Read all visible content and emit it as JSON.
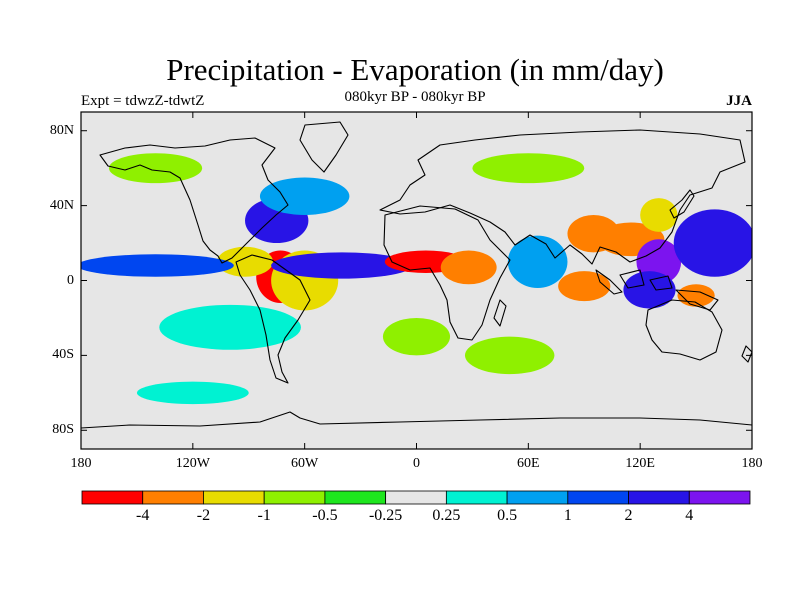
{
  "title": "Precipitation - Evaporation (in mm/day)",
  "subtitle": "080kyr BP - 080kyr BP",
  "experiment": "Expt = tdwzZ-tdwtZ",
  "season": "JJA",
  "lat_ticks": [
    "80N",
    "40N",
    "0",
    "40S",
    "80S"
  ],
  "lon_ticks": [
    "180",
    "120W",
    "60W",
    "0",
    "60E",
    "120E",
    "180"
  ],
  "colorbar": {
    "colors": [
      "#ff0000",
      "#ff7f00",
      "#e8dc00",
      "#8ff000",
      "#1ee61e",
      "#e6e6e6",
      "#00f2d2",
      "#00a0f0",
      "#0046f0",
      "#2814e6",
      "#7c14ef"
    ],
    "labels": [
      "-4",
      "-2",
      "-1",
      "-0.5",
      "-0.25",
      "0.25",
      "0.5",
      "1",
      "2",
      "4"
    ]
  },
  "chart_data": {
    "type": "heatmap",
    "title": "Precipitation - Evaporation (in mm/day)",
    "subtitle": "080kyr BP - 080kyr BP",
    "projection": "cylindrical equidistant",
    "xlim": [
      -180,
      180
    ],
    "ylim": [
      -90,
      90
    ],
    "x_ticks": [
      -180,
      -120,
      -60,
      0,
      60,
      120,
      180
    ],
    "y_ticks": [
      80,
      40,
      0,
      -40,
      -80
    ],
    "levels": [
      -4,
      -2,
      -1,
      -0.5,
      -0.25,
      0.25,
      0.5,
      1,
      2,
      4
    ],
    "features": [
      {
        "lon": -73,
        "lat": 2,
        "value": -5,
        "rx": 13,
        "ry": 14
      },
      {
        "lon": -92,
        "lat": 10,
        "value": -1.5,
        "rx": 15,
        "ry": 8
      },
      {
        "lon": -60,
        "lat": 0,
        "value": -1.5,
        "rx": 18,
        "ry": 16
      },
      {
        "lon": -40,
        "lat": 8,
        "value": 3,
        "rx": 38,
        "ry": 7
      },
      {
        "lon": -140,
        "lat": 8,
        "value": 1.5,
        "rx": 42,
        "ry": 6
      },
      {
        "lon": -75,
        "lat": 32,
        "value": 2.5,
        "rx": 17,
        "ry": 12
      },
      {
        "lon": -60,
        "lat": 45,
        "value": 1,
        "rx": 24,
        "ry": 10
      },
      {
        "lon": 5,
        "lat": 10,
        "value": -5,
        "rx": 22,
        "ry": 6
      },
      {
        "lon": 28,
        "lat": 7,
        "value": -2,
        "rx": 15,
        "ry": 9
      },
      {
        "lon": 95,
        "lat": 25,
        "value": -3,
        "rx": 14,
        "ry": 10
      },
      {
        "lon": 115,
        "lat": 22,
        "value": -2,
        "rx": 18,
        "ry": 9
      },
      {
        "lon": 130,
        "lat": 35,
        "value": -1,
        "rx": 10,
        "ry": 9
      },
      {
        "lon": 130,
        "lat": 10,
        "value": 5,
        "rx": 12,
        "ry": 12
      },
      {
        "lon": 160,
        "lat": 20,
        "value": 2.5,
        "rx": 22,
        "ry": 18
      },
      {
        "lon": 125,
        "lat": -5,
        "value": 3,
        "rx": 14,
        "ry": 10
      },
      {
        "lon": 150,
        "lat": -8,
        "value": -3,
        "rx": 10,
        "ry": 6
      },
      {
        "lon": 90,
        "lat": -3,
        "value": -2.5,
        "rx": 14,
        "ry": 8
      },
      {
        "lon": 65,
        "lat": 10,
        "value": 1,
        "rx": 16,
        "ry": 14
      },
      {
        "lon": 50,
        "lat": -40,
        "value": -0.5,
        "rx": 24,
        "ry": 10
      },
      {
        "lon": 0,
        "lat": -30,
        "value": -0.5,
        "rx": 18,
        "ry": 10
      },
      {
        "lon": -100,
        "lat": -25,
        "value": 0.5,
        "rx": 38,
        "ry": 12
      },
      {
        "lon": -140,
        "lat": 60,
        "value": -0.5,
        "rx": 25,
        "ry": 8
      },
      {
        "lon": 60,
        "lat": 60,
        "value": -0.5,
        "rx": 30,
        "ry": 8
      },
      {
        "lon": -120,
        "lat": -60,
        "value": 0.5,
        "rx": 30,
        "ry": 6
      }
    ]
  }
}
